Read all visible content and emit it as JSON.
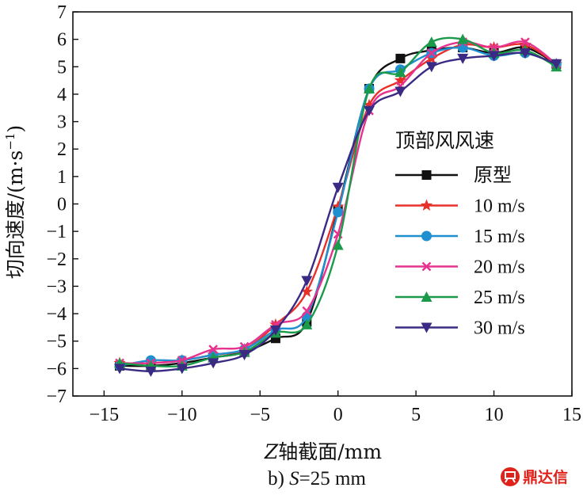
{
  "chart_data": {
    "type": "line",
    "xlabel": "Z轴截面/mm",
    "xlabel_italic": "Z",
    "xlabel_rest": "轴截面/mm",
    "ylabel": "切向速度/(m·s⁻¹)",
    "ylabel_main": "切向速度/(m·s",
    "ylabel_sup": "−1",
    "ylabel_close": ")",
    "caption_prefix": "b) ",
    "caption_var": "S",
    "caption_rest": "=25 mm",
    "xlim": [
      -17,
      15
    ],
    "ylim": [
      -7,
      7
    ],
    "xticks": [
      -15,
      -10,
      -5,
      0,
      5,
      10,
      15
    ],
    "xtick_labels": [
      "−15",
      "−10",
      "−5",
      "0",
      "5",
      "10",
      "15"
    ],
    "yticks": [
      -7,
      -6,
      -5,
      -4,
      -3,
      -2,
      -1,
      0,
      1,
      2,
      3,
      4,
      5,
      6,
      7
    ],
    "ytick_labels": [
      "−7",
      "−6",
      "−5",
      "−4",
      "−3",
      "−2",
      "−1",
      "0",
      "1",
      "2",
      "3",
      "4",
      "5",
      "6",
      "7"
    ],
    "grid": false,
    "legend_title": "顶部风风速",
    "legend_position": "center-right",
    "series": [
      {
        "name": "原型",
        "color": "#111111",
        "marker": "square",
        "x": [
          -14,
          -12,
          -10,
          -8,
          -6,
          -4,
          -2,
          0,
          2,
          4,
          6,
          8,
          10,
          12,
          14
        ],
        "y": [
          -5.9,
          -5.9,
          -5.8,
          -5.6,
          -5.4,
          -4.9,
          -4.3,
          -0.2,
          4.2,
          5.3,
          5.6,
          5.7,
          5.5,
          5.7,
          5.1
        ]
      },
      {
        "name": "10 m/s",
        "color": "#e8302a",
        "marker": "star",
        "x": [
          -14,
          -12,
          -10,
          -8,
          -6,
          -4,
          -2,
          0,
          2,
          4,
          6,
          8,
          10,
          12,
          14
        ],
        "y": [
          -5.8,
          -5.8,
          -5.7,
          -5.5,
          -5.3,
          -4.4,
          -3.2,
          -0.1,
          3.6,
          4.5,
          5.3,
          5.8,
          5.7,
          5.8,
          5.1
        ]
      },
      {
        "name": "15 m/s",
        "color": "#1f8fd0",
        "marker": "circle",
        "x": [
          -14,
          -12,
          -10,
          -8,
          -6,
          -4,
          -2,
          0,
          2,
          4,
          6,
          8,
          10,
          12,
          14
        ],
        "y": [
          -5.9,
          -5.7,
          -5.7,
          -5.5,
          -5.3,
          -4.6,
          -4.1,
          -0.3,
          4.2,
          4.9,
          5.5,
          5.7,
          5.4,
          5.5,
          5.1
        ]
      },
      {
        "name": "20 m/s",
        "color": "#e6338f",
        "marker": "x",
        "x": [
          -14,
          -12,
          -10,
          -8,
          -6,
          -4,
          -2,
          0,
          2,
          4,
          6,
          8,
          10,
          12,
          14
        ],
        "y": [
          -5.8,
          -5.8,
          -5.7,
          -5.3,
          -5.2,
          -4.4,
          -3.9,
          -1.1,
          3.4,
          4.3,
          5.5,
          5.9,
          5.7,
          5.9,
          5.1
        ]
      },
      {
        "name": "25 m/s",
        "color": "#1a9a4a",
        "marker": "triangle-up",
        "x": [
          -14,
          -12,
          -10,
          -8,
          -6,
          -4,
          -2,
          0,
          2,
          4,
          6,
          8,
          10,
          12,
          14
        ],
        "y": [
          -5.8,
          -5.9,
          -5.9,
          -5.6,
          -5.4,
          -4.7,
          -4.4,
          -1.5,
          4.2,
          4.8,
          5.9,
          6.0,
          5.5,
          5.6,
          5.0
        ]
      },
      {
        "name": "30 m/s",
        "color": "#3b2a84",
        "marker": "triangle-down",
        "x": [
          -14,
          -12,
          -10,
          -8,
          -6,
          -4,
          -2,
          0,
          2,
          4,
          6,
          8,
          10,
          12,
          14
        ],
        "y": [
          -6.0,
          -6.1,
          -6.0,
          -5.8,
          -5.5,
          -4.6,
          -2.8,
          0.6,
          3.4,
          4.1,
          5.0,
          5.3,
          5.4,
          5.5,
          5.1
        ]
      }
    ]
  },
  "watermark": {
    "text": "鼎达信",
    "color": "#e0231a",
    "logo": "brand-logo-icon"
  }
}
